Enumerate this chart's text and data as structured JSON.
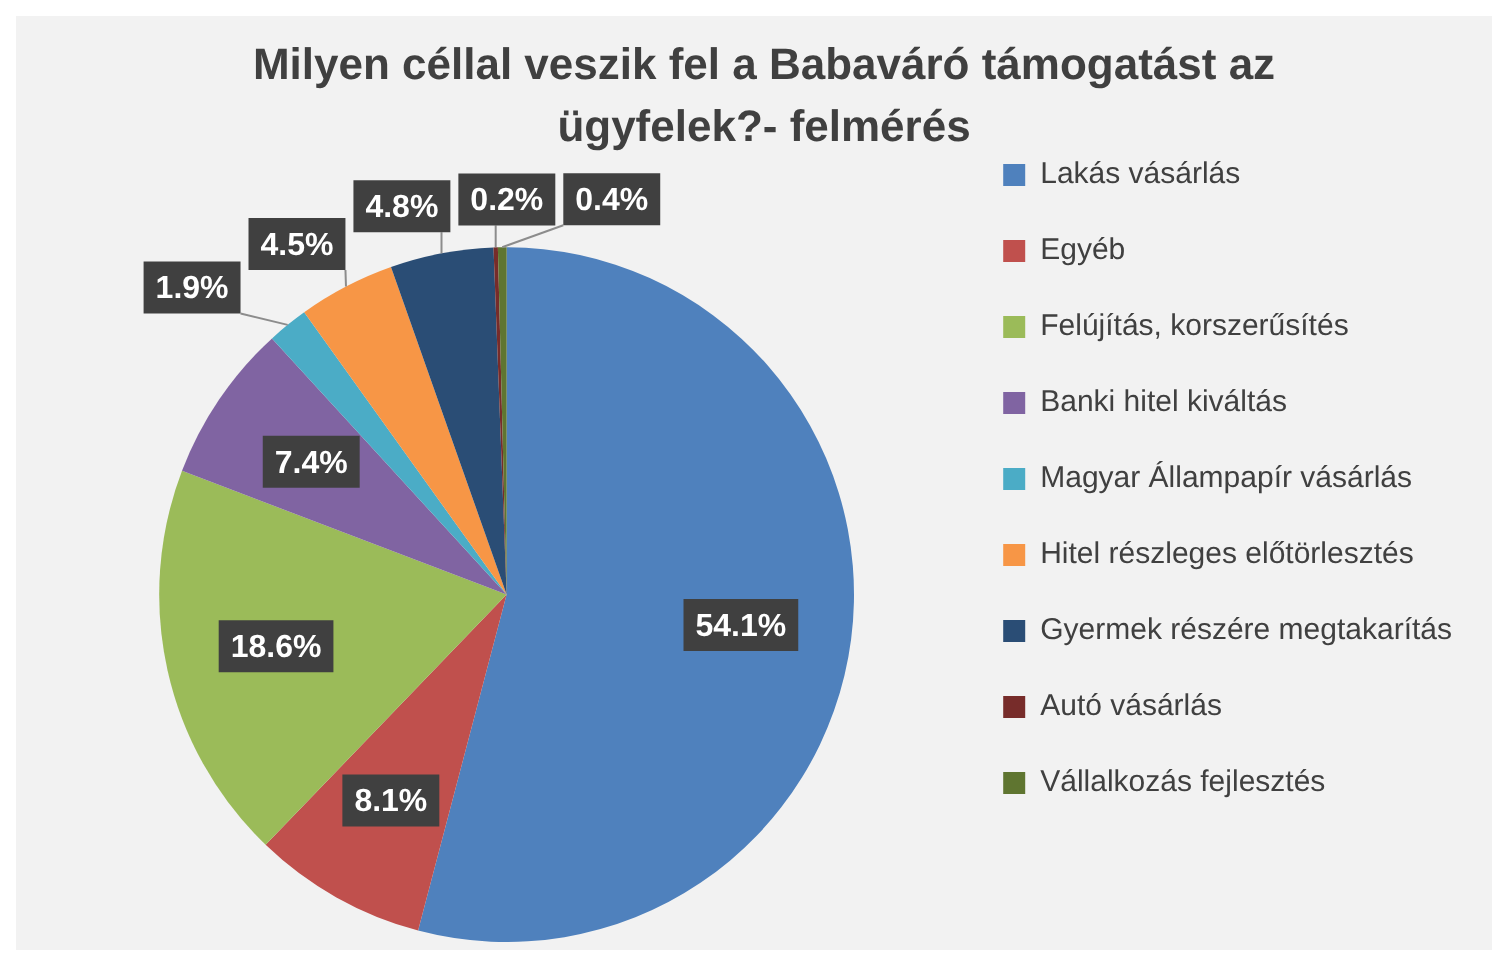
{
  "chart_data": {
    "type": "pie",
    "title": "Milyen céllal veszik fel a Babaváró támogatást az ügyfelek?- felmérés",
    "categories": [
      "Lakás vásárlás",
      "Egyéb",
      "Felújítás, korszerűsítés",
      "Banki hitel kiváltás",
      "Magyar Állampapír vásárlás",
      "Hitel részleges előtörlesztés",
      "Gyermek részére megtakarítás",
      "Autó vásárlás",
      "Vállalkozás fejlesztés"
    ],
    "values": [
      54.1,
      8.1,
      18.6,
      7.4,
      1.9,
      4.5,
      4.8,
      0.2,
      0.4
    ],
    "value_labels": [
      "54.1%",
      "8.1%",
      "18.6%",
      "7.4%",
      "1.9%",
      "4.5%",
      "4.8%",
      "0.2%",
      "0.4%"
    ],
    "colors": [
      "#4f81bd",
      "#c0504d",
      "#9bbb59",
      "#8064a2",
      "#4bacc6",
      "#f79646",
      "#2a4d75",
      "#772c2a",
      "#5f7530"
    ],
    "legend": "right"
  }
}
